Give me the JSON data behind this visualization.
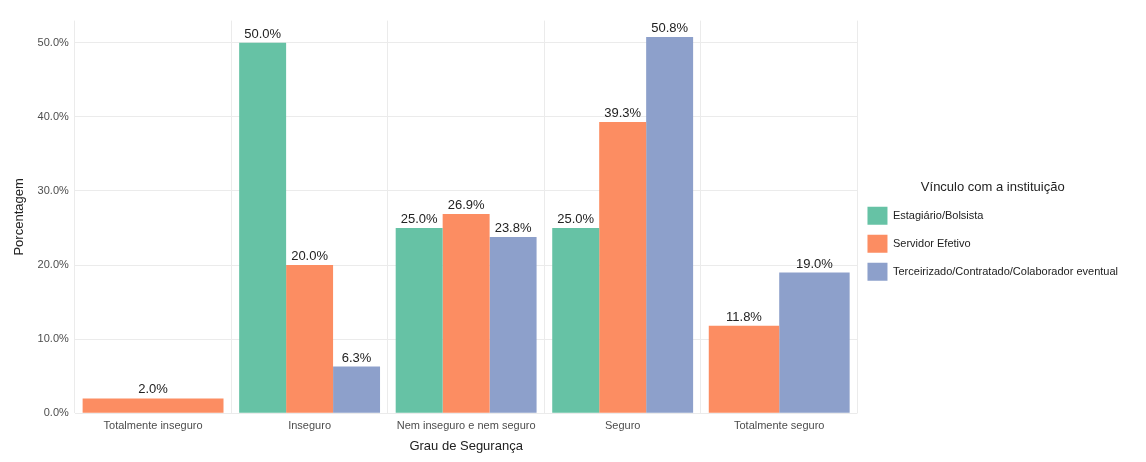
{
  "chart_data": {
    "type": "bar",
    "xlabel": "Grau de Segurança",
    "ylabel": "Porcentagem",
    "legend_title": "Vínculo com a instituição",
    "legend": "right",
    "grid": true,
    "categories": [
      "Totalmente inseguro",
      "Inseguro",
      "Nem inseguro e nem seguro",
      "Seguro",
      "Totalmente seguro"
    ],
    "ylim": [
      0,
      53
    ],
    "yticks": [
      {
        "value": 0,
        "label": "0.0%"
      },
      {
        "value": 10,
        "label": "10.0%"
      },
      {
        "value": 20,
        "label": "20.0%"
      },
      {
        "value": 30,
        "label": "30.0%"
      },
      {
        "value": 40,
        "label": "40.0%"
      },
      {
        "value": 50,
        "label": "50.0%"
      }
    ],
    "series": [
      {
        "name": "Estagiário/Bolsista",
        "color": "#66c2a5",
        "values": [
          null,
          50.0,
          25.0,
          25.0,
          null
        ],
        "value_labels": [
          null,
          "50.0%",
          "25.0%",
          "25.0%",
          null
        ]
      },
      {
        "name": "Servidor Efetivo",
        "color": "#fc8d62",
        "values": [
          2.0,
          20.0,
          26.9,
          39.3,
          11.8
        ],
        "value_labels": [
          "2.0%",
          "20.0%",
          "26.9%",
          "39.3%",
          "11.8%"
        ]
      },
      {
        "name": "Terceirizado/Contratado/Colaborador eventual",
        "color": "#8da0cb",
        "values": [
          null,
          6.3,
          23.8,
          50.8,
          19.0
        ],
        "value_labels": [
          null,
          "6.3%",
          "23.8%",
          "50.8%",
          "19.0%"
        ]
      }
    ]
  }
}
